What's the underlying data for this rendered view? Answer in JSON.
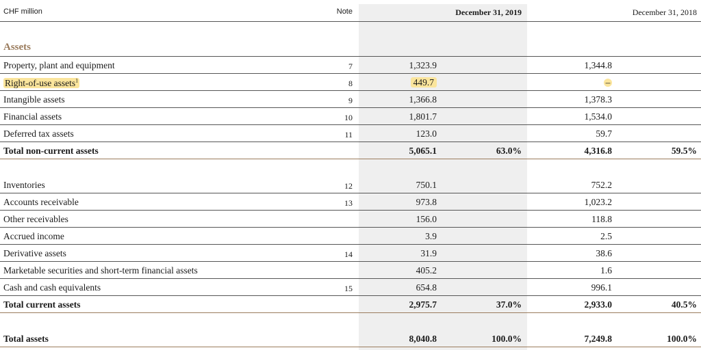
{
  "header": {
    "unit": "CHF million",
    "note": "Note",
    "col_2019": "December 31, 2019",
    "col_2018": "December 31, 2018"
  },
  "section_title": "Assets",
  "rows": [
    {
      "label": "Property, plant and equipment",
      "note": "7",
      "v2019": "1,323.9",
      "v2018": "1,344.8"
    },
    {
      "label": "Right-of-use assets",
      "sup": "1",
      "note": "8",
      "v2019": "449.7",
      "v2018": "–"
    },
    {
      "label": "Intangible assets",
      "note": "9",
      "v2019": "1,366.8",
      "v2018": "1,378.3"
    },
    {
      "label": "Financial assets",
      "note": "10",
      "v2019": "1,801.7",
      "v2018": "1,534.0"
    },
    {
      "label": "Deferred tax assets",
      "note": "11",
      "v2019": "123.0",
      "v2018": "59.7"
    },
    {
      "label": "Total non-current assets",
      "v2019": "5,065.1",
      "p2019": "63.0%",
      "v2018": "4,316.8",
      "p2018": "59.5%"
    },
    {
      "label": "Inventories",
      "note": "12",
      "v2019": "750.1",
      "v2018": "752.2"
    },
    {
      "label": "Accounts receivable",
      "note": "13",
      "v2019": "973.8",
      "v2018": "1,023.2"
    },
    {
      "label": "Other receivables",
      "v2019": "156.0",
      "v2018": "118.8"
    },
    {
      "label": "Accrued income",
      "v2019": "3.9",
      "v2018": "2.5"
    },
    {
      "label": "Derivative assets",
      "note": "14",
      "v2019": "31.9",
      "v2018": "38.6"
    },
    {
      "label": "Marketable securities and short-term financial assets",
      "v2019": "405.2",
      "v2018": "1.6"
    },
    {
      "label": "Cash and cash equivalents",
      "note": "15",
      "v2019": "654.8",
      "v2018": "996.1"
    },
    {
      "label": "Total current assets",
      "v2019": "2,975.7",
      "p2019": "37.0%",
      "v2018": "2,933.0",
      "p2018": "40.5%"
    },
    {
      "label": "Total assets",
      "v2019": "8,040.8",
      "p2019": "100.0%",
      "v2018": "7,249.8",
      "p2018": "100.0%"
    }
  ]
}
